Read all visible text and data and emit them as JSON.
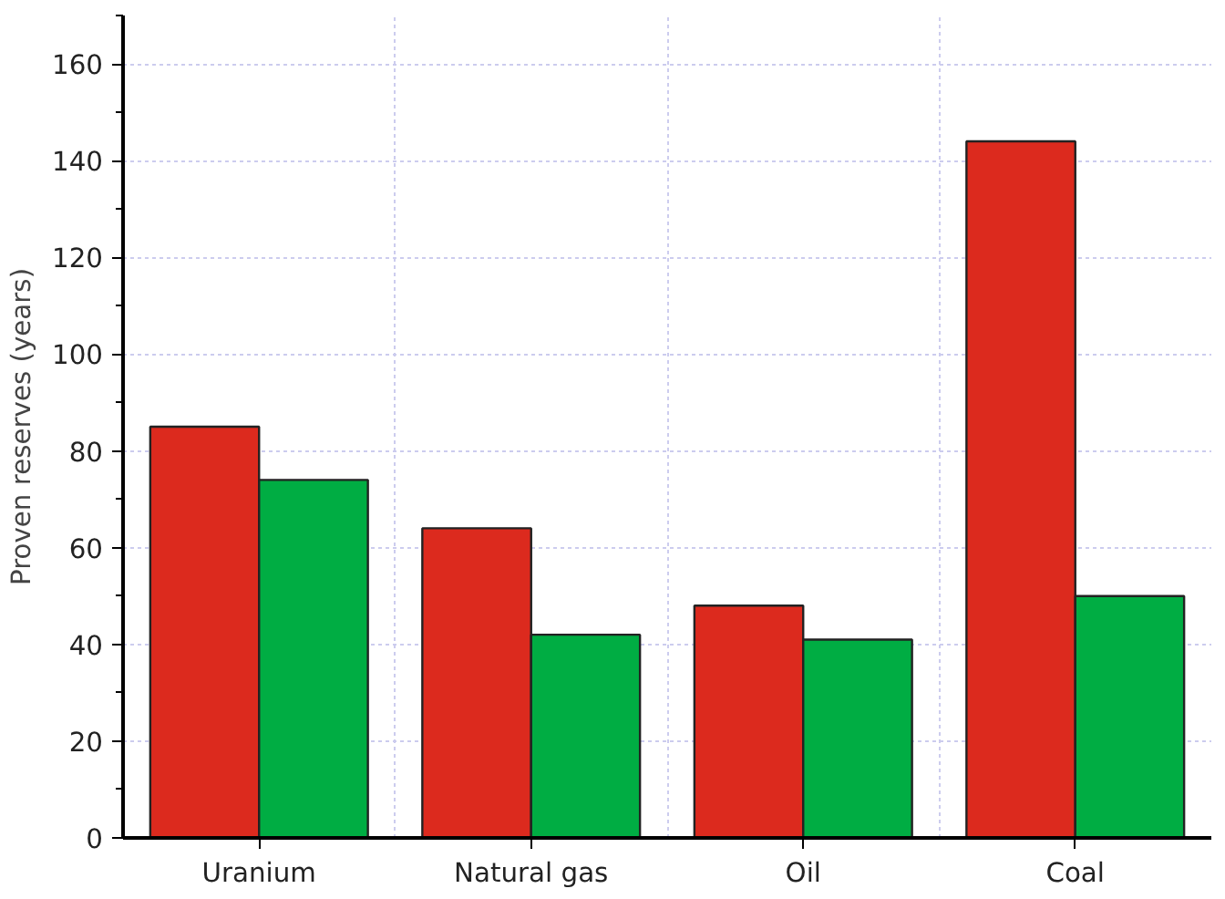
{
  "chart_data": {
    "type": "bar",
    "ylabel": "Proven reserves (years)",
    "categories": [
      "Uranium",
      "Natural gas",
      "Oil",
      "Coal"
    ],
    "series": [
      {
        "color": "#dc2a1e",
        "values": [
          85,
          64,
          48,
          144
        ]
      },
      {
        "color": "#00ad43",
        "values": [
          74,
          42,
          41,
          50
        ]
      }
    ],
    "ylim": [
      0,
      170
    ],
    "yticks": [
      0,
      20,
      40,
      60,
      80,
      100,
      120,
      140,
      160
    ],
    "grid": true
  }
}
